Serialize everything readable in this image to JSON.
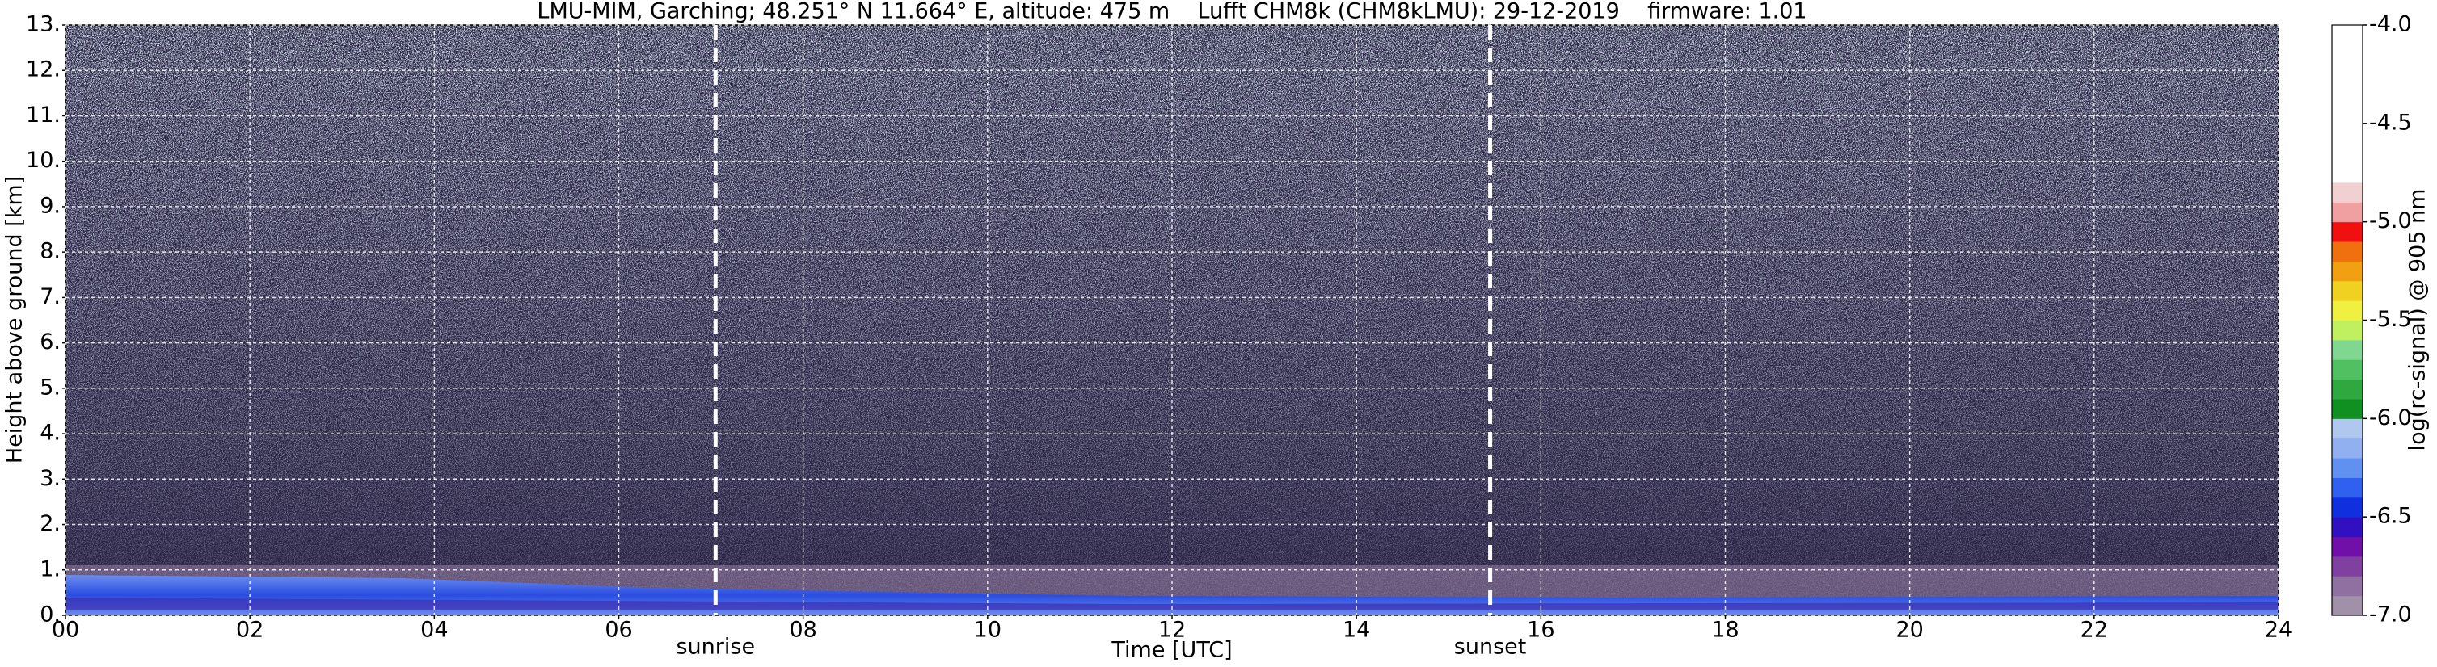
{
  "chart_data": {
    "type": "heatmap",
    "title": "LMU-MIM, Garching; 48.251° N 11.664° E, altitude: 475 m    Lufft CHM8k (CHM8kLMU): 29-12-2019    firmware: 1.01",
    "x_label": "Time [UTC]",
    "y_label": "Height above ground [km]",
    "xlim": [
      0,
      24
    ],
    "xticks": [
      {
        "value": 0,
        "label": "00"
      },
      {
        "value": 2,
        "label": "02"
      },
      {
        "value": 4,
        "label": "04"
      },
      {
        "value": 6,
        "label": "06"
      },
      {
        "value": 8,
        "label": "08"
      },
      10,
      12,
      14,
      16,
      18,
      20,
      22,
      24
    ],
    "ylim": [
      0,
      13
    ],
    "yticks": [
      {
        "value": 0,
        "label": "0."
      },
      {
        "value": 1,
        "label": "1."
      },
      {
        "value": 2,
        "label": "2."
      },
      {
        "value": 3,
        "label": "3."
      },
      {
        "value": 4,
        "label": "4."
      },
      {
        "value": 5,
        "label": "5."
      },
      {
        "value": 6,
        "label": "6."
      },
      {
        "value": 7,
        "label": "7."
      },
      {
        "value": 8,
        "label": "8."
      },
      {
        "value": 9,
        "label": "9."
      },
      {
        "value": 10,
        "label": "10."
      },
      {
        "value": 11,
        "label": "11."
      },
      {
        "value": 12,
        "label": "12."
      },
      {
        "value": 13,
        "label": "13."
      }
    ],
    "grid": true,
    "annotations": [
      {
        "text": "sunrise",
        "x": 7.05
      },
      {
        "text": "sunset",
        "x": 15.45
      }
    ],
    "colorbar": {
      "label": "log(rc-signal) @ 905 nm",
      "lim": [
        -7,
        -4
      ],
      "ticks": [
        {
          "value": -4,
          "label": "-4.0"
        },
        -4.5,
        {
          "value": -5,
          "label": "-5.0"
        },
        -5.5,
        {
          "value": -6,
          "label": "-6.0"
        },
        -6.5,
        {
          "value": -7,
          "label": "-7.0"
        }
      ],
      "colors": [
        "#a090a8",
        "#9070a0",
        "#8040a0",
        "#7010a8",
        "#3010c0",
        "#1030e0",
        "#3060f0",
        "#6090f0",
        "#90b0f0",
        "#b0c8f0",
        "#109020",
        "#30a840",
        "#50c060",
        "#80d890",
        "#c0f060",
        "#f0f040",
        "#f0d020",
        "#f0a010",
        "#f07010",
        "#f01010",
        "#f0a0a0",
        "#f0d0d0",
        "#ffffff",
        "#ffffff",
        "#ffffff",
        "#ffffff",
        "#ffffff",
        "#ffffff",
        "#ffffff",
        "#ffffff"
      ]
    }
  }
}
